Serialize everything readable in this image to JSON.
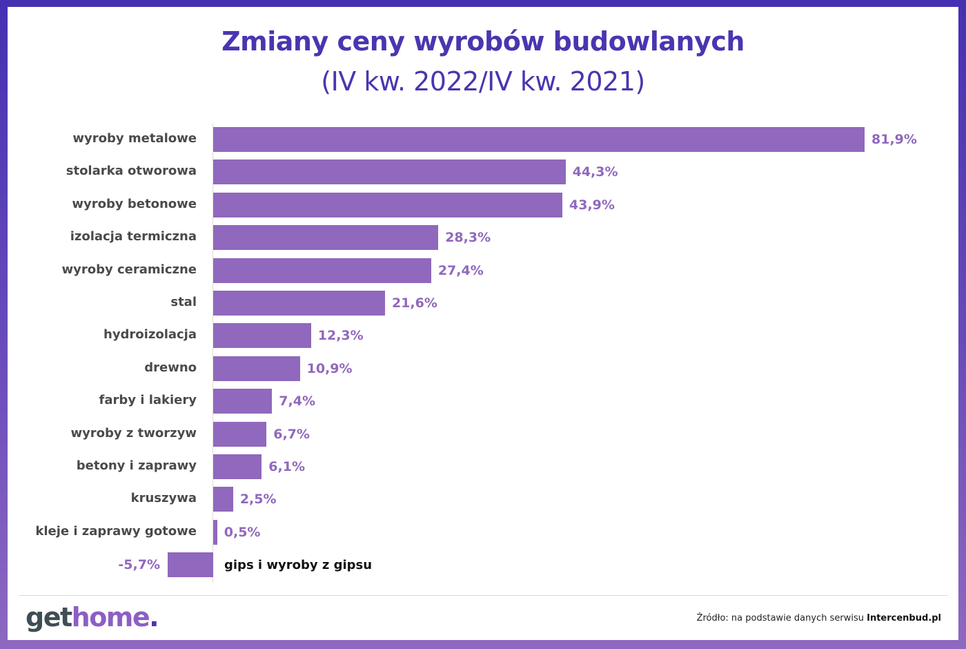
{
  "header": {
    "title": "Zmiany ceny wyrobów budowlanych",
    "subtitle": "(IV kw. 2022/IV kw. 2021)"
  },
  "colors": {
    "bar": "#9068bd",
    "title": "#4b35b0",
    "frame_top": "#4530b2",
    "frame_bottom": "#8e69c0",
    "category_text": "#4a4a4a"
  },
  "chart_data": {
    "type": "bar",
    "orientation": "horizontal",
    "title": "Zmiany ceny wyrobów budowlanych",
    "subtitle": "(IV kw. 2022/IV kw. 2021)",
    "xlabel": "",
    "ylabel": "",
    "unit": "%",
    "grid": false,
    "legend": null,
    "categories": [
      "wyroby metalowe",
      "stolarka otworowa",
      "wyroby betonowe",
      "izolacja termiczna",
      "wyroby ceramiczne",
      "stal",
      "hydroizolacja",
      "drewno",
      "farby i lakiery",
      "wyroby z tworzyw",
      "betony i zaprawy",
      "kruszywa",
      "kleje i zaprawy gotowe",
      "gips i wyroby z gipsu"
    ],
    "values": [
      81.9,
      44.3,
      43.9,
      28.3,
      27.4,
      21.6,
      12.3,
      10.9,
      7.4,
      6.7,
      6.1,
      2.5,
      0.5,
      -5.7
    ],
    "value_labels": [
      "81,9%",
      "44,3%",
      "43,9%",
      "28,3%",
      "27,4%",
      "21,6%",
      "12,3%",
      "10,9%",
      "7,4%",
      "6,7%",
      "6,1%",
      "2,5%",
      "0,5%",
      "-5,7%"
    ]
  },
  "footer": {
    "logo": {
      "part1": "get",
      "part2": "home",
      "part3": "."
    },
    "source_prefix": "Źródło: na podstawie danych serwisu ",
    "source_name": "Intercenbud.pl"
  }
}
